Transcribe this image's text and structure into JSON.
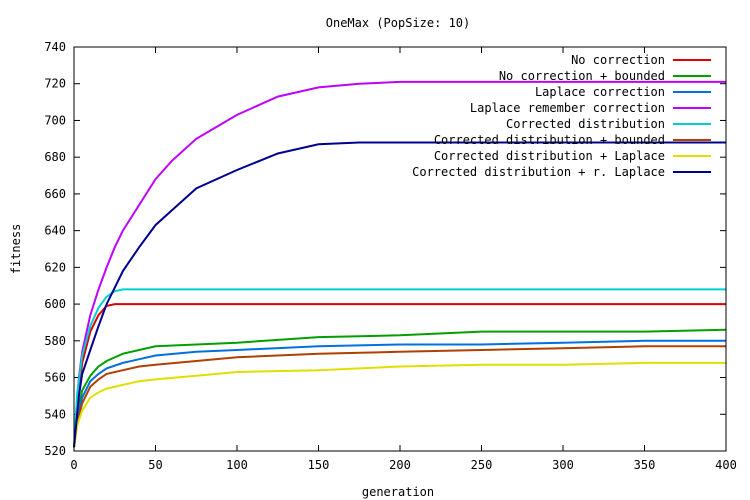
{
  "chart_data": {
    "type": "line",
    "title": "OneMax (PopSize: 10)",
    "xlabel": "generation",
    "ylabel": "fitness",
    "xlim": [
      0,
      400
    ],
    "ylim": [
      520,
      740
    ],
    "xticks": [
      0,
      50,
      100,
      150,
      200,
      250,
      300,
      350,
      400
    ],
    "yticks": [
      520,
      540,
      560,
      580,
      600,
      620,
      640,
      660,
      680,
      700,
      720,
      740
    ],
    "grid": false,
    "legend_position": "top-right",
    "series": [
      {
        "name": "No correction",
        "color": "#e00000",
        "x": [
          0,
          2,
          5,
          10,
          15,
          20,
          25,
          400
        ],
        "y": [
          522,
          545,
          568,
          585,
          594,
          599,
          600,
          600
        ]
      },
      {
        "name": "No correction + bounded",
        "color": "#00a000",
        "x": [
          0,
          2,
          5,
          10,
          15,
          20,
          30,
          40,
          50,
          75,
          100,
          150,
          200,
          250,
          300,
          350,
          400
        ],
        "y": [
          522,
          540,
          553,
          561,
          566,
          569,
          573,
          575,
          577,
          578,
          579,
          582,
          583,
          585,
          585,
          585,
          586
        ]
      },
      {
        "name": "Laplace correction",
        "color": "#0070e0",
        "x": [
          0,
          2,
          5,
          10,
          15,
          20,
          30,
          40,
          50,
          75,
          100,
          150,
          200,
          250,
          300,
          350,
          400
        ],
        "y": [
          522,
          537,
          549,
          558,
          562,
          565,
          568,
          570,
          572,
          574,
          575,
          577,
          578,
          578,
          579,
          580,
          580
        ]
      },
      {
        "name": "Laplace remember correction",
        "color": "#c000ff",
        "x": [
          0,
          3,
          5,
          10,
          15,
          20,
          25,
          30,
          40,
          50,
          60,
          75,
          100,
          125,
          150,
          175,
          200,
          250,
          300,
          400
        ],
        "y": [
          522,
          560,
          574,
          594,
          608,
          620,
          631,
          640,
          654,
          668,
          678,
          690,
          703,
          713,
          718,
          720,
          721,
          721,
          721,
          721
        ]
      },
      {
        "name": "Corrected distribution",
        "color": "#00d0d0",
        "x": [
          0,
          2,
          5,
          10,
          15,
          20,
          25,
          30,
          400
        ],
        "y": [
          522,
          552,
          572,
          588,
          598,
          604,
          607,
          608,
          608
        ]
      },
      {
        "name": "Corrected distribution + bounded",
        "color": "#b04000",
        "x": [
          0,
          2,
          5,
          10,
          15,
          20,
          30,
          40,
          50,
          75,
          100,
          150,
          200,
          250,
          300,
          350,
          400
        ],
        "y": [
          522,
          535,
          546,
          555,
          559,
          562,
          564,
          566,
          567,
          569,
          571,
          573,
          574,
          575,
          576,
          577,
          577
        ]
      },
      {
        "name": "Corrected distribution + Laplace",
        "color": "#e0e000",
        "x": [
          0,
          2,
          5,
          10,
          15,
          20,
          30,
          40,
          50,
          75,
          100,
          150,
          200,
          250,
          300,
          350,
          400
        ],
        "y": [
          522,
          534,
          542,
          549,
          552,
          554,
          556,
          558,
          559,
          561,
          563,
          564,
          566,
          567,
          567,
          568,
          568
        ]
      },
      {
        "name": "Corrected distribution + r. Laplace",
        "color": "#000090",
        "x": [
          0,
          3,
          5,
          10,
          15,
          20,
          25,
          30,
          40,
          50,
          60,
          75,
          100,
          125,
          150,
          175,
          200,
          250,
          300,
          400
        ],
        "y": [
          522,
          550,
          562,
          575,
          588,
          600,
          609,
          618,
          631,
          643,
          651,
          663,
          673,
          682,
          687,
          688,
          688,
          688,
          688,
          688
        ]
      }
    ]
  }
}
